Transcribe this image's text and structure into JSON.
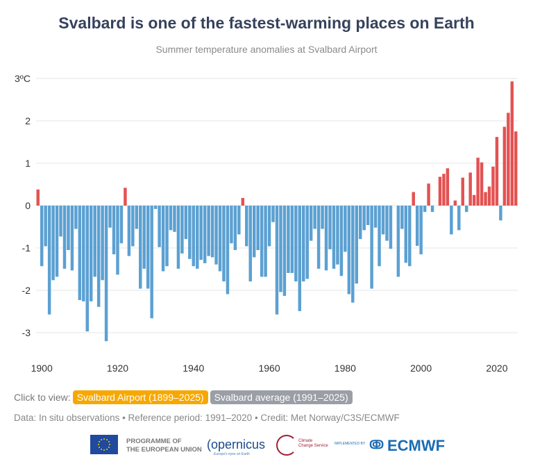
{
  "title": "Svalbard is one of the fastest-warming places on Earth",
  "subtitle": "Summer temperature anomalies at Svalbard Airport",
  "controls": {
    "label": "Click to view:",
    "options": [
      {
        "label": "Svalbard Airport (1899–2025)",
        "active": true
      },
      {
        "label": "Svalbard average (1991–2025)",
        "active": false
      }
    ]
  },
  "credit": "Data: In situ observations • Reference period: 1991–2020 • Credit: Met Norway/C3S/ECMWF",
  "logos": {
    "eu": "PROGRAMME OF THE EUROPEAN UNION",
    "copernicus": "opernicus",
    "copernicus_tagline": "Europe's eyes on Earth",
    "c3s": "Climate Change Service",
    "implemented_by": "IMPLEMENTED BY",
    "ecmwf": "ECMWF"
  },
  "colors": {
    "positive": "#e45252",
    "negative": "#5ba0d2",
    "title": "#36425c",
    "active_button": "#f7a800",
    "inactive_button": "#9a9ea5"
  },
  "chart_data": {
    "type": "bar",
    "title": "Svalbard is one of the fastest-warming places on Earth",
    "subtitle": "Summer temperature anomalies at Svalbard Airport",
    "xlabel": "",
    "ylabel": "",
    "unit": "ºC",
    "x_start": 1899,
    "x_end": 2025,
    "ylim": [
      -3.5,
      3.1
    ],
    "yticks": [
      -3,
      -2,
      -1,
      0,
      1,
      2,
      3
    ],
    "ytick_labels": [
      "-3",
      "-2",
      "-1",
      "0",
      "1",
      "2",
      "3ºC"
    ],
    "xticks": [
      1900,
      1920,
      1940,
      1960,
      1980,
      2000,
      2020
    ],
    "xtick_labels": [
      "1900",
      "1920",
      "1940",
      "1960",
      "1980",
      "2000",
      "2020"
    ],
    "grid": true,
    "values": [
      0.38,
      -1.43,
      -0.96,
      -2.57,
      -1.76,
      -1.68,
      -0.73,
      -1.49,
      -1.05,
      -1.53,
      -0.55,
      -2.23,
      -2.26,
      -2.97,
      -2.26,
      -1.68,
      -2.39,
      -1.76,
      -3.2,
      -0.52,
      -1.15,
      -1.63,
      -0.89,
      0.42,
      -1.19,
      -0.96,
      -0.55,
      -1.96,
      -1.49,
      -1.96,
      -2.66,
      -0.08,
      -0.98,
      -1.55,
      -1.43,
      -0.58,
      -0.62,
      -1.49,
      -1.13,
      -0.79,
      -1.26,
      -1.43,
      -1.49,
      -1.28,
      -1.36,
      -1.19,
      -1.22,
      -1.39,
      -1.55,
      -1.79,
      -2.09,
      -0.89,
      -1.05,
      -0.68,
      0.18,
      -0.96,
      -1.79,
      -1.22,
      -1.05,
      -1.68,
      -1.68,
      -0.96,
      -0.39,
      -2.57,
      -2.04,
      -2.13,
      -1.59,
      -1.59,
      -1.79,
      -2.49,
      -1.79,
      -1.73,
      -0.83,
      -0.55,
      -1.49,
      -0.55,
      -1.53,
      -1.03,
      -1.49,
      -1.39,
      -1.66,
      -1.09,
      -2.09,
      -2.29,
      -1.84,
      -0.79,
      -0.58,
      -0.46,
      -1.96,
      -0.52,
      -1.43,
      -0.68,
      -0.83,
      -1.02,
      0,
      -1.68,
      -0.55,
      -1.35,
      -1.43,
      0.32,
      -0.95,
      -1.15,
      -0.15,
      0.52,
      -0.15,
      0,
      0.68,
      0.75,
      0.88,
      -0.68,
      0.12,
      -0.58,
      0.66,
      -0.15,
      0.78,
      0.25,
      1.13,
      1.02,
      0.32,
      0.45,
      0.92,
      1.62,
      -0.35,
      1.86,
      2.19,
      2.93,
      1.75
    ]
  }
}
